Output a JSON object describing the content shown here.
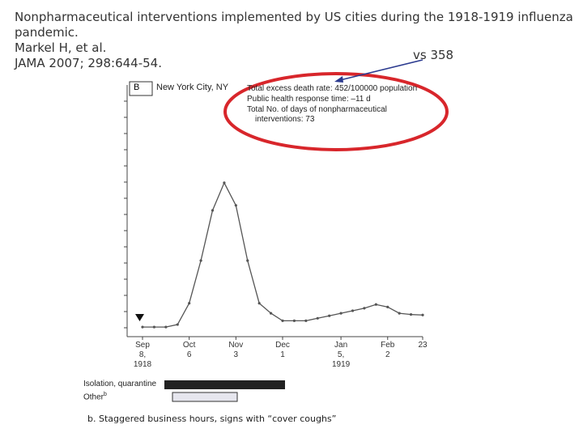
{
  "slide": {
    "title": "Nonpharmaceutical interventions implemented by US cities during the 1918-1919 influenza pandemic.",
    "authors": "Markel H, et al.",
    "journal": "JAMA 2007; 298:644-54.",
    "comparison_note": "vs 358"
  },
  "chart_data": {
    "type": "line",
    "panel_label": "B",
    "title": "New York City, NY",
    "annotations": [
      "Total excess death rate: 452/100000 population",
      "Public health response time: –11 d",
      "Total No. of days of nonpharmaceutical interventions: 73"
    ],
    "categories": [
      "Sep\n8,\n1918",
      null,
      null,
      null,
      "Oct\n6",
      null,
      null,
      null,
      "Nov\n3",
      null,
      null,
      null,
      "Dec\n1",
      null,
      null,
      null,
      null,
      "Jan\n5,\n1919",
      null,
      null,
      null,
      "Feb\n2",
      null,
      null,
      "23"
    ],
    "series": [
      {
        "color": "#555555",
        "values": [
          3.5,
          3.5,
          3.5,
          4.5,
          13,
          30,
          50,
          61,
          52,
          30,
          13,
          9,
          6,
          6,
          6,
          7,
          8,
          9,
          10,
          11,
          12.5,
          11.5,
          9,
          8.5,
          8.3
        ]
      }
    ],
    "ylim": [
      0,
      100
    ],
    "interventions": [
      {
        "label": "Isolation, quarantine",
        "color": "#222222"
      },
      {
        "label": "Other",
        "footnote_mark": "b",
        "color": "#e6e6ee"
      }
    ],
    "footnote": "b. Staggered business hours, signs with “cover coughs”"
  }
}
